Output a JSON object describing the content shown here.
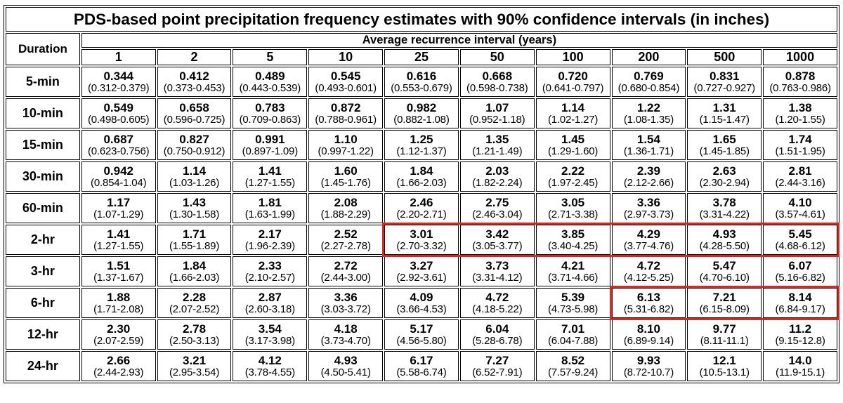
{
  "title": "PDS-based point precipitation frequency estimates with 90% confidence intervals (in inches)",
  "duration_header": "Duration",
  "ari_header": "Average recurrence interval (years)",
  "columns": [
    "1",
    "2",
    "5",
    "10",
    "25",
    "50",
    "100",
    "200",
    "500",
    "1000"
  ],
  "highlight_color": "#e2231a",
  "rows": [
    {
      "duration": "5-min",
      "values": [
        {
          "v": "0.344",
          "ci": "(0.312-0.379)"
        },
        {
          "v": "0.412",
          "ci": "(0.373-0.453)"
        },
        {
          "v": "0.489",
          "ci": "(0.443-0.539)"
        },
        {
          "v": "0.545",
          "ci": "(0.493-0.601)"
        },
        {
          "v": "0.616",
          "ci": "(0.553-0.679)"
        },
        {
          "v": "0.668",
          "ci": "(0.598-0.738)"
        },
        {
          "v": "0.720",
          "ci": "(0.641-0.797)"
        },
        {
          "v": "0.769",
          "ci": "(0.680-0.854)"
        },
        {
          "v": "0.831",
          "ci": "(0.727-0.927)"
        },
        {
          "v": "0.878",
          "ci": "(0.763-0.986)"
        }
      ]
    },
    {
      "duration": "10-min",
      "values": [
        {
          "v": "0.549",
          "ci": "(0.498-0.605)"
        },
        {
          "v": "0.658",
          "ci": "(0.596-0.725)"
        },
        {
          "v": "0.783",
          "ci": "(0.709-0.863)"
        },
        {
          "v": "0.872",
          "ci": "(0.788-0.961)"
        },
        {
          "v": "0.982",
          "ci": "(0.882-1.08)"
        },
        {
          "v": "1.07",
          "ci": "(0.952-1.18)"
        },
        {
          "v": "1.14",
          "ci": "(1.02-1.27)"
        },
        {
          "v": "1.22",
          "ci": "(1.08-1.35)"
        },
        {
          "v": "1.31",
          "ci": "(1.15-1.47)"
        },
        {
          "v": "1.38",
          "ci": "(1.20-1.55)"
        }
      ]
    },
    {
      "duration": "15-min",
      "values": [
        {
          "v": "0.687",
          "ci": "(0.623-0.756)"
        },
        {
          "v": "0.827",
          "ci": "(0.750-0.912)"
        },
        {
          "v": "0.991",
          "ci": "(0.897-1.09)"
        },
        {
          "v": "1.10",
          "ci": "(0.997-1.22)"
        },
        {
          "v": "1.25",
          "ci": "(1.12-1.37)"
        },
        {
          "v": "1.35",
          "ci": "(1.21-1.49)"
        },
        {
          "v": "1.45",
          "ci": "(1.29-1.60)"
        },
        {
          "v": "1.54",
          "ci": "(1.36-1.71)"
        },
        {
          "v": "1.65",
          "ci": "(1.45-1.85)"
        },
        {
          "v": "1.74",
          "ci": "(1.51-1.95)"
        }
      ]
    },
    {
      "duration": "30-min",
      "values": [
        {
          "v": "0.942",
          "ci": "(0.854-1.04)"
        },
        {
          "v": "1.14",
          "ci": "(1.03-1.26)"
        },
        {
          "v": "1.41",
          "ci": "(1.27-1.55)"
        },
        {
          "v": "1.60",
          "ci": "(1.45-1.76)"
        },
        {
          "v": "1.84",
          "ci": "(1.66-2.03)"
        },
        {
          "v": "2.03",
          "ci": "(1.82-2.24)"
        },
        {
          "v": "2.22",
          "ci": "(1.97-2.45)"
        },
        {
          "v": "2.39",
          "ci": "(2.12-2.66)"
        },
        {
          "v": "2.63",
          "ci": "(2.30-2.94)"
        },
        {
          "v": "2.81",
          "ci": "(2.44-3.16)"
        }
      ]
    },
    {
      "duration": "60-min",
      "values": [
        {
          "v": "1.17",
          "ci": "(1.07-1.29)"
        },
        {
          "v": "1.43",
          "ci": "(1.30-1.58)"
        },
        {
          "v": "1.81",
          "ci": "(1.63-1.99)"
        },
        {
          "v": "2.08",
          "ci": "(1.88-2.29)"
        },
        {
          "v": "2.46",
          "ci": "(2.20-2.71)"
        },
        {
          "v": "2.75",
          "ci": "(2.46-3.04)"
        },
        {
          "v": "3.05",
          "ci": "(2.71-3.38)"
        },
        {
          "v": "3.36",
          "ci": "(2.97-3.73)"
        },
        {
          "v": "3.78",
          "ci": "(3.31-4.22)"
        },
        {
          "v": "4.10",
          "ci": "(3.57-4.61)"
        }
      ]
    },
    {
      "duration": "2-hr",
      "values": [
        {
          "v": "1.41",
          "ci": "(1.27-1.55)"
        },
        {
          "v": "1.71",
          "ci": "(1.55-1.89)"
        },
        {
          "v": "2.17",
          "ci": "(1.96-2.39)"
        },
        {
          "v": "2.52",
          "ci": "(2.27-2.78)"
        },
        {
          "v": "3.01",
          "ci": "(2.70-3.32)"
        },
        {
          "v": "3.42",
          "ci": "(3.05-3.77)"
        },
        {
          "v": "3.85",
          "ci": "(3.40-4.25)"
        },
        {
          "v": "4.29",
          "ci": "(3.77-4.76)"
        },
        {
          "v": "4.93",
          "ci": "(4.28-5.50)"
        },
        {
          "v": "5.45",
          "ci": "(4.68-6.12)"
        }
      ]
    },
    {
      "duration": "3-hr",
      "values": [
        {
          "v": "1.51",
          "ci": "(1.37-1.67)"
        },
        {
          "v": "1.84",
          "ci": "(1.66-2.03)"
        },
        {
          "v": "2.33",
          "ci": "(2.10-2.57)"
        },
        {
          "v": "2.72",
          "ci": "(2.44-3.00)"
        },
        {
          "v": "3.27",
          "ci": "(2.92-3.61)"
        },
        {
          "v": "3.73",
          "ci": "(3.31-4.12)"
        },
        {
          "v": "4.21",
          "ci": "(3.71-4.66)"
        },
        {
          "v": "4.72",
          "ci": "(4.12-5.25)"
        },
        {
          "v": "5.47",
          "ci": "(4.70-6.10)"
        },
        {
          "v": "6.07",
          "ci": "(5.16-6.82)"
        }
      ]
    },
    {
      "duration": "6-hr",
      "values": [
        {
          "v": "1.88",
          "ci": "(1.71-2.08)"
        },
        {
          "v": "2.28",
          "ci": "(2.07-2.52)"
        },
        {
          "v": "2.87",
          "ci": "(2.60-3.18)"
        },
        {
          "v": "3.36",
          "ci": "(3.03-3.72)"
        },
        {
          "v": "4.09",
          "ci": "(3.66-4.53)"
        },
        {
          "v": "4.72",
          "ci": "(4.18-5.22)"
        },
        {
          "v": "5.39",
          "ci": "(4.73-5.98)"
        },
        {
          "v": "6.13",
          "ci": "(5.31-6.82)"
        },
        {
          "v": "7.21",
          "ci": "(6.15-8.09)"
        },
        {
          "v": "8.14",
          "ci": "(6.84-9.17)"
        }
      ]
    },
    {
      "duration": "12-hr",
      "values": [
        {
          "v": "2.30",
          "ci": "(2.07-2.59)"
        },
        {
          "v": "2.78",
          "ci": "(2.50-3.13)"
        },
        {
          "v": "3.54",
          "ci": "(3.17-3.98)"
        },
        {
          "v": "4.18",
          "ci": "(3.73-4.70)"
        },
        {
          "v": "5.17",
          "ci": "(4.56-5.80)"
        },
        {
          "v": "6.04",
          "ci": "(5.28-6.78)"
        },
        {
          "v": "7.01",
          "ci": "(6.04-7.88)"
        },
        {
          "v": "8.10",
          "ci": "(6.89-9.14)"
        },
        {
          "v": "9.77",
          "ci": "(8.11-11.1)"
        },
        {
          "v": "11.2",
          "ci": "(9.15-12.8)"
        }
      ]
    },
    {
      "duration": "24-hr",
      "values": [
        {
          "v": "2.66",
          "ci": "(2.44-2.93)"
        },
        {
          "v": "3.21",
          "ci": "(2.95-3.54)"
        },
        {
          "v": "4.12",
          "ci": "(3.78-4.55)"
        },
        {
          "v": "4.93",
          "ci": "(4.50-5.41)"
        },
        {
          "v": "6.17",
          "ci": "(5.58-6.74)"
        },
        {
          "v": "7.27",
          "ci": "(6.52-7.91)"
        },
        {
          "v": "8.52",
          "ci": "(7.57-9.24)"
        },
        {
          "v": "9.93",
          "ci": "(8.72-10.7)"
        },
        {
          "v": "12.1",
          "ci": "(10.5-13.1)"
        },
        {
          "v": "14.0",
          "ci": "(11.9-15.1)"
        }
      ]
    }
  ]
}
